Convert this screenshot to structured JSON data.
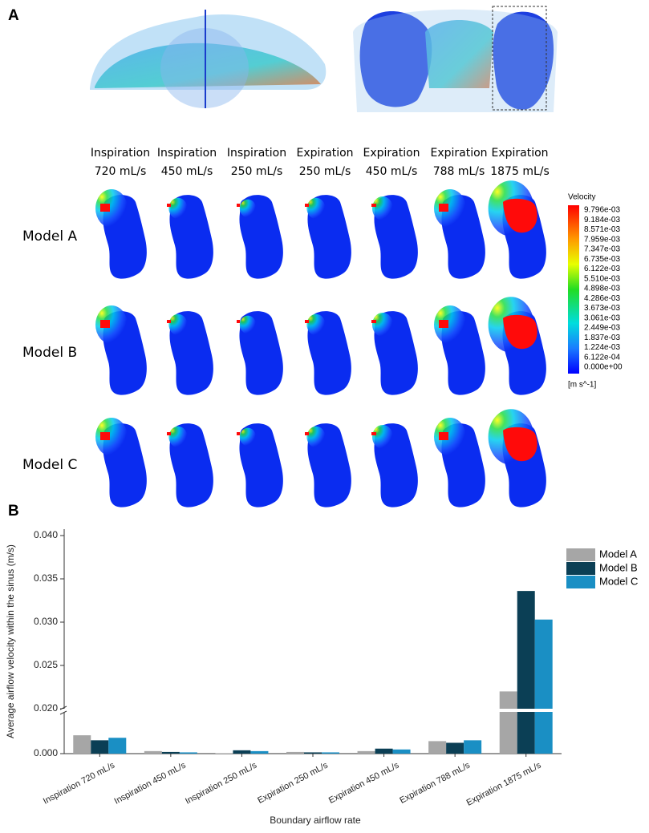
{
  "panel_a": {
    "label": "A",
    "columns": [
      {
        "line1": "Inspiration",
        "line2": "720 mL/s"
      },
      {
        "line1": "Inspiration",
        "line2": "450 mL/s"
      },
      {
        "line1": "Inspiration",
        "line2": "250 mL/s"
      },
      {
        "line1": "Expiration",
        "line2": "250 mL/s"
      },
      {
        "line1": "Expiration",
        "line2": "450 mL/s"
      },
      {
        "line1": "Expiration",
        "line2": "788 mL/s"
      },
      {
        "line1": "Expiration",
        "line2": "1875 mL/s"
      }
    ],
    "rows": [
      "Model A",
      "Model B",
      "Model C"
    ],
    "colorbar": {
      "title": "Velocity",
      "labels": [
        "9.796e-03",
        "9.184e-03",
        "8.571e-03",
        "7.959e-03",
        "7.347e-03",
        "6.735e-03",
        "6.122e-03",
        "5.510e-03",
        "4.898e-03",
        "4.286e-03",
        "3.673e-03",
        "3.061e-03",
        "2.449e-03",
        "1.837e-03",
        "1.224e-03",
        "6.122e-04",
        "0.000e+00"
      ],
      "unit": "[m s^-1]"
    }
  },
  "chart_data": {
    "type": "bar",
    "panel_label": "B",
    "xlabel": "Boundary airflow rate",
    "ylabel": "Average airflow velocity within the sinus (m/s)",
    "categories": [
      "Inspiration 720 mL/s",
      "Inspiration 450 mL/s",
      "Inspiration 250 mL/s",
      "Expiration 250 mL/s",
      "Expiration 450 mL/s",
      "Expiration 788 mL/s",
      "Expiration 1875 mL/s"
    ],
    "series": [
      {
        "name": "Model A",
        "color": "#a6a6a6",
        "values": [
          0.0022,
          0.0003,
          5e-05,
          0.0002,
          0.0003,
          0.0015,
          0.022
        ]
      },
      {
        "name": "Model B",
        "color": "#0b3f55",
        "values": [
          0.0016,
          0.0002,
          0.0004,
          0.00015,
          0.0006,
          0.0013,
          0.0336
        ]
      },
      {
        "name": "Model C",
        "color": "#1a8fc4",
        "values": [
          0.0019,
          0.00015,
          0.0003,
          0.00015,
          0.0005,
          0.0016,
          0.0303
        ]
      }
    ],
    "y_segments": [
      {
        "ylim": [
          0,
          0.005
        ],
        "yticks": [
          {
            "value": 0,
            "label": "0.000"
          }
        ]
      },
      {
        "ylim": [
          0.02,
          0.04
        ],
        "yticks": [
          {
            "value": 0.02,
            "label": "0.020"
          },
          {
            "value": 0.025,
            "label": "0.025"
          },
          {
            "value": 0.03,
            "label": "0.030"
          },
          {
            "value": 0.035,
            "label": "0.035"
          },
          {
            "value": 0.04,
            "label": "0.040"
          }
        ]
      }
    ],
    "legend": "right"
  }
}
